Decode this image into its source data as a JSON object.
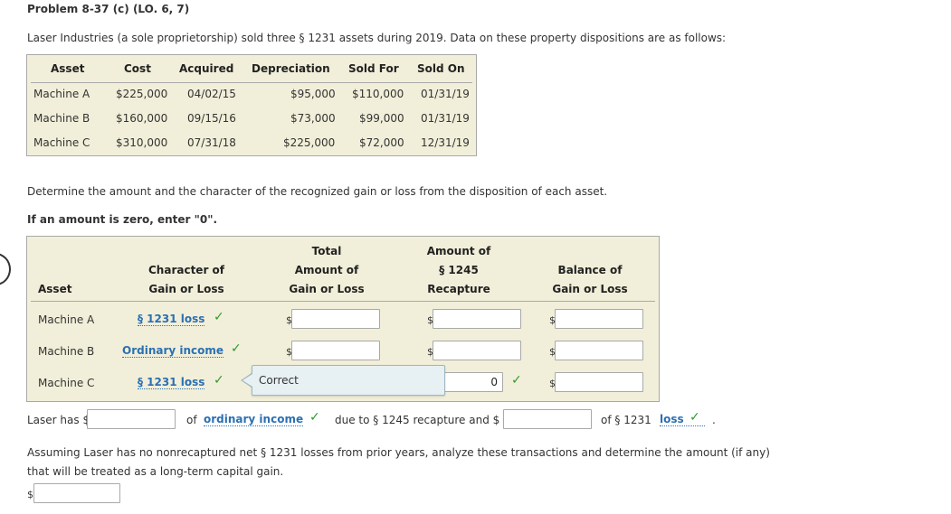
{
  "problem_title": "Problem 8-37 (c) (LO. 6, 7)",
  "intro": "Laser Industries (a sole proprietorship) sold three § 1231 assets during 2019. Data on these property dispositions are as follows:",
  "data_table": {
    "headers": [
      "Asset",
      "Cost",
      "Acquired",
      "Depreciation",
      "Sold For",
      "Sold On"
    ],
    "rows": [
      [
        "Machine A",
        "$225,000",
        "04/02/15",
        "$95,000",
        "$110,000",
        "01/31/19"
      ],
      [
        "Machine B",
        "$160,000",
        "09/15/16",
        "$73,000",
        "$99,000",
        "01/31/19"
      ],
      [
        "Machine C",
        "$310,000",
        "07/31/18",
        "$225,000",
        "$72,000",
        "12/31/19"
      ]
    ]
  },
  "instruction": "Determine the amount and the character of the recognized gain or loss from the disposition of each asset.",
  "zero_note": "If an amount is zero, enter \"0\".",
  "answer_table": {
    "headers": {
      "asset": "Asset",
      "character_l1": "Character of",
      "character_l2": "Gain or Loss",
      "total_l1": "Total",
      "total_l2": "Amount of",
      "total_l3": "Gain or Loss",
      "recap_l1": "Amount of",
      "recap_l2": "§ 1245",
      "recap_l3": "Recapture",
      "balance_l1": "Balance of",
      "balance_l2": "Gain or Loss"
    },
    "rows": [
      {
        "asset": "Machine A",
        "character": "§ 1231 loss",
        "total": "",
        "recapture": "",
        "balance": ""
      },
      {
        "asset": "Machine B",
        "character": "Ordinary income",
        "total": "",
        "recapture": "",
        "balance": ""
      },
      {
        "asset": "Machine C",
        "character": "§ 1231 loss",
        "total": "",
        "recapture": "0",
        "balance": ""
      }
    ],
    "currency_symbol": "$",
    "check_mark": "✓"
  },
  "tooltip": "Correct",
  "summary": {
    "prefix": "Laser has $",
    "mid1": "of",
    "select1": "ordinary income",
    "mid2": "due to § 1245 recapture and $",
    "mid3": "of § 1231",
    "select2": "loss",
    "end": "."
  },
  "question2_l1": "Assuming Laser has no nonrecaptured net § 1231 losses from prior years, analyze these transactions and determine the amount (if any)",
  "question2_l2": "that will be treated as a long-term capital gain.",
  "colors": {
    "table_bg": "#f1efd9",
    "select_blue": "#2c70b3",
    "check_green": "#2e9a2e"
  }
}
